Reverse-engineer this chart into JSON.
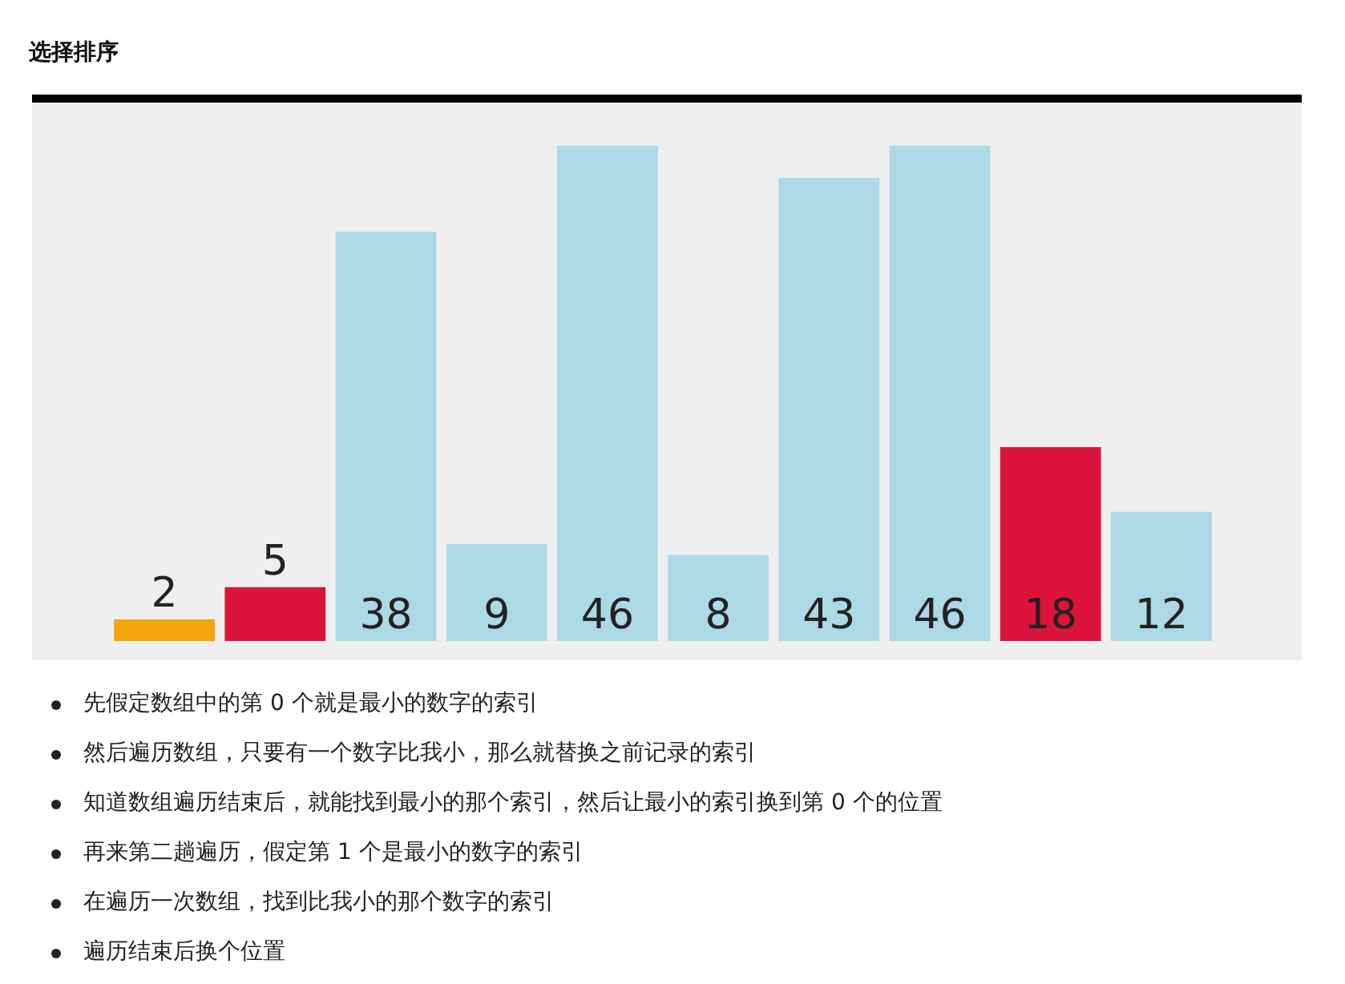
{
  "chart_data": {
    "type": "bar",
    "title": "选择排序",
    "categories": [
      null,
      null,
      null,
      null,
      null,
      null,
      null,
      null,
      null,
      null
    ],
    "values": [
      2,
      5,
      38,
      9,
      46,
      8,
      43,
      46,
      18,
      12
    ],
    "colors": [
      "#f5a30c",
      "#dc143c",
      "#add8e6",
      "#add8e6",
      "#add8e6",
      "#add8e6",
      "#add8e6",
      "#add8e6",
      "#dc143c",
      "#add8e6"
    ],
    "data_labels": true,
    "legend": false,
    "annotations": [
      "先假定数组中的第 0 个就是最小的数字的索引",
      "然后遍历数组，只要有一个数字比我小，那么就替换之前记录的索引",
      "知道数组遍历结束后，就能找到最小的那个索引，然后让最小的索引换到第 0 个的位置",
      "再来第二趟遍历，假定第 1 个是最小的数字的索引",
      "在遍历一次数组，找到比我小的那个数字的索引",
      "遍历结束后换个位置"
    ]
  }
}
